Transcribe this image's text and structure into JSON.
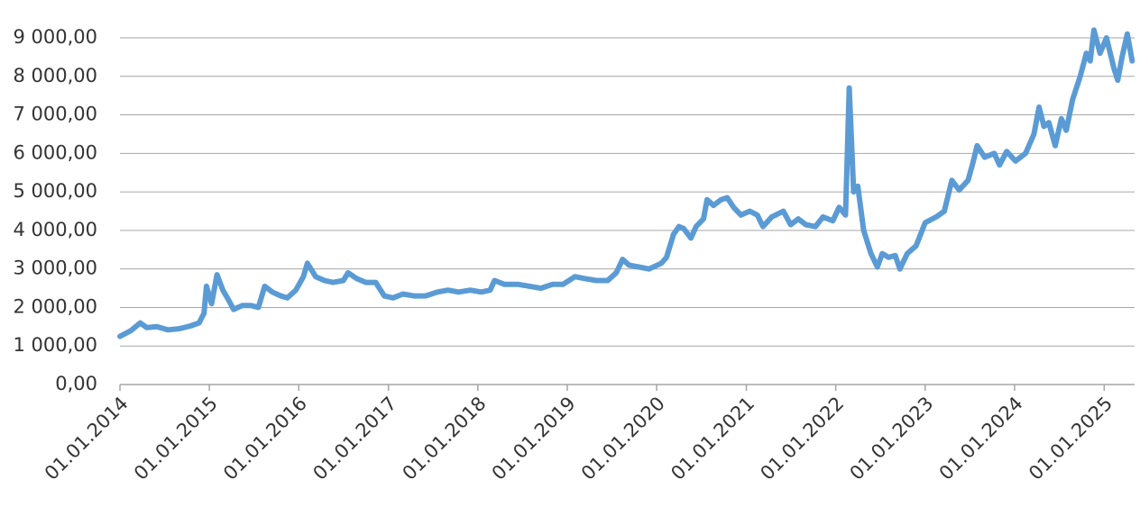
{
  "chart_data": {
    "type": "line",
    "color": "#5b9bd5",
    "grid": true,
    "xlim": [
      "2014-01-01",
      "2025-05-05"
    ],
    "xticks": [
      {
        "value": "2014-01-01",
        "label": "01.01.2014"
      },
      {
        "value": "2015-01-01",
        "label": "01.01.2015"
      },
      {
        "value": "2016-01-01",
        "label": "01.01.2016"
      },
      {
        "value": "2017-01-01",
        "label": "01.01.2017"
      },
      {
        "value": "2018-01-01",
        "label": "01.01.2018"
      },
      {
        "value": "2019-01-01",
        "label": "01.01.2019"
      },
      {
        "value": "2020-01-01",
        "label": "01.01.2020"
      },
      {
        "value": "2021-01-01",
        "label": "01.01.2021"
      },
      {
        "value": "2022-01-01",
        "label": "01.01.2022"
      },
      {
        "value": "2023-01-01",
        "label": "01.01.2023"
      },
      {
        "value": "2024-01-01",
        "label": "01.01.2024"
      },
      {
        "value": "2025-01-01",
        "label": "01.01.2025"
      }
    ],
    "ylim": [
      0,
      9000
    ],
    "yticks": [
      {
        "value": 0,
        "label": "0,00"
      },
      {
        "value": 1000,
        "label": "1 000,00"
      },
      {
        "value": 2000,
        "label": "2 000,00"
      },
      {
        "value": 3000,
        "label": "3 000,00"
      },
      {
        "value": 4000,
        "label": "4 000,00"
      },
      {
        "value": 5000,
        "label": "5 000,00"
      },
      {
        "value": 6000,
        "label": "6 000,00"
      },
      {
        "value": 7000,
        "label": "7 000,00"
      },
      {
        "value": 8000,
        "label": "8 000,00"
      },
      {
        "value": 9000,
        "label": "9 000,00"
      }
    ],
    "x": [
      "2014-01-01",
      "2014-02-15",
      "2014-03-25",
      "2014-04-20",
      "2014-06-01",
      "2014-07-15",
      "2014-09-01",
      "2014-10-15",
      "2014-11-20",
      "2014-12-10",
      "2014-12-20",
      "2015-01-10",
      "2015-02-01",
      "2015-02-25",
      "2015-03-20",
      "2015-04-10",
      "2015-05-15",
      "2015-06-20",
      "2015-07-20",
      "2015-08-15",
      "2015-09-15",
      "2015-10-20",
      "2015-11-15",
      "2015-12-20",
      "2016-01-20",
      "2016-02-05",
      "2016-03-10",
      "2016-04-15",
      "2016-05-20",
      "2016-07-01",
      "2016-07-20",
      "2016-08-25",
      "2016-10-01",
      "2016-11-10",
      "2016-12-15",
      "2017-01-20",
      "2017-03-01",
      "2017-04-15",
      "2017-06-01",
      "2017-07-20",
      "2017-09-01",
      "2017-10-15",
      "2017-12-01",
      "2018-01-15",
      "2018-02-20",
      "2018-03-10",
      "2018-04-20",
      "2018-06-15",
      "2018-08-01",
      "2018-09-15",
      "2018-11-01",
      "2018-12-15",
      "2019-02-01",
      "2019-03-15",
      "2019-05-01",
      "2019-06-15",
      "2019-07-20",
      "2019-08-15",
      "2019-09-10",
      "2019-10-20",
      "2019-12-01",
      "2020-01-20",
      "2020-02-10",
      "2020-03-10",
      "2020-04-01",
      "2020-04-20",
      "2020-05-20",
      "2020-06-10",
      "2020-07-10",
      "2020-07-25",
      "2020-08-20",
      "2020-09-20",
      "2020-10-15",
      "2020-11-10",
      "2020-12-10",
      "2021-01-15",
      "2021-02-15",
      "2021-03-10",
      "2021-04-15",
      "2021-06-01",
      "2021-07-01",
      "2021-08-01",
      "2021-09-01",
      "2021-10-10",
      "2021-11-10",
      "2021-12-20",
      "2022-01-15",
      "2022-02-10",
      "2022-02-25",
      "2022-03-15",
      "2022-04-01",
      "2022-04-25",
      "2022-05-25",
      "2022-06-20",
      "2022-07-10",
      "2022-08-05",
      "2022-09-01",
      "2022-09-20",
      "2022-10-20",
      "2022-11-25",
      "2023-01-01",
      "2023-02-15",
      "2023-03-20",
      "2023-04-20",
      "2023-05-20",
      "2023-06-25",
      "2023-07-15",
      "2023-08-01",
      "2023-09-01",
      "2023-10-10",
      "2023-11-01",
      "2023-11-30",
      "2024-01-05",
      "2024-02-15",
      "2024-03-20",
      "2024-04-10",
      "2024-04-30",
      "2024-05-20",
      "2024-06-15",
      "2024-07-10",
      "2024-07-30",
      "2024-08-25",
      "2024-09-25",
      "2024-10-20",
      "2024-11-05",
      "2024-11-20",
      "2024-12-15",
      "2025-01-10",
      "2025-02-10",
      "2025-02-25",
      "2025-03-15",
      "2025-04-05",
      "2025-04-25"
    ],
    "values": [
      1250,
      1400,
      1600,
      1480,
      1500,
      1420,
      1450,
      1520,
      1600,
      1850,
      2550,
      2100,
      2850,
      2450,
      2200,
      1950,
      2050,
      2050,
      2000,
      2550,
      2400,
      2300,
      2250,
      2450,
      2800,
      3150,
      2800,
      2700,
      2650,
      2700,
      2900,
      2750,
      2650,
      2650,
      2300,
      2250,
      2350,
      2300,
      2300,
      2400,
      2450,
      2400,
      2450,
      2400,
      2450,
      2700,
      2600,
      2600,
      2550,
      2500,
      2600,
      2600,
      2800,
      2750,
      2700,
      2700,
      2900,
      3250,
      3100,
      3050,
      3000,
      3150,
      3300,
      3900,
      4100,
      4050,
      3800,
      4100,
      4300,
      4800,
      4650,
      4800,
      4850,
      4600,
      4400,
      4500,
      4400,
      4100,
      4350,
      4500,
      4150,
      4300,
      4150,
      4100,
      4350,
      4250,
      4600,
      4400,
      7700,
      5000,
      5150,
      4000,
      3400,
      3050,
      3400,
      3300,
      3350,
      3000,
      3400,
      3600,
      4200,
      4350,
      4500,
      5300,
      5050,
      5300,
      5750,
      6200,
      5900,
      6000,
      5700,
      6050,
      5800,
      6000,
      6500,
      7200,
      6700,
      6800,
      6200,
      6900,
      6600,
      7400,
      8000,
      8600,
      8400,
      9200,
      8600,
      9000,
      8200,
      7900,
      8500,
      9100,
      8400
    ]
  }
}
